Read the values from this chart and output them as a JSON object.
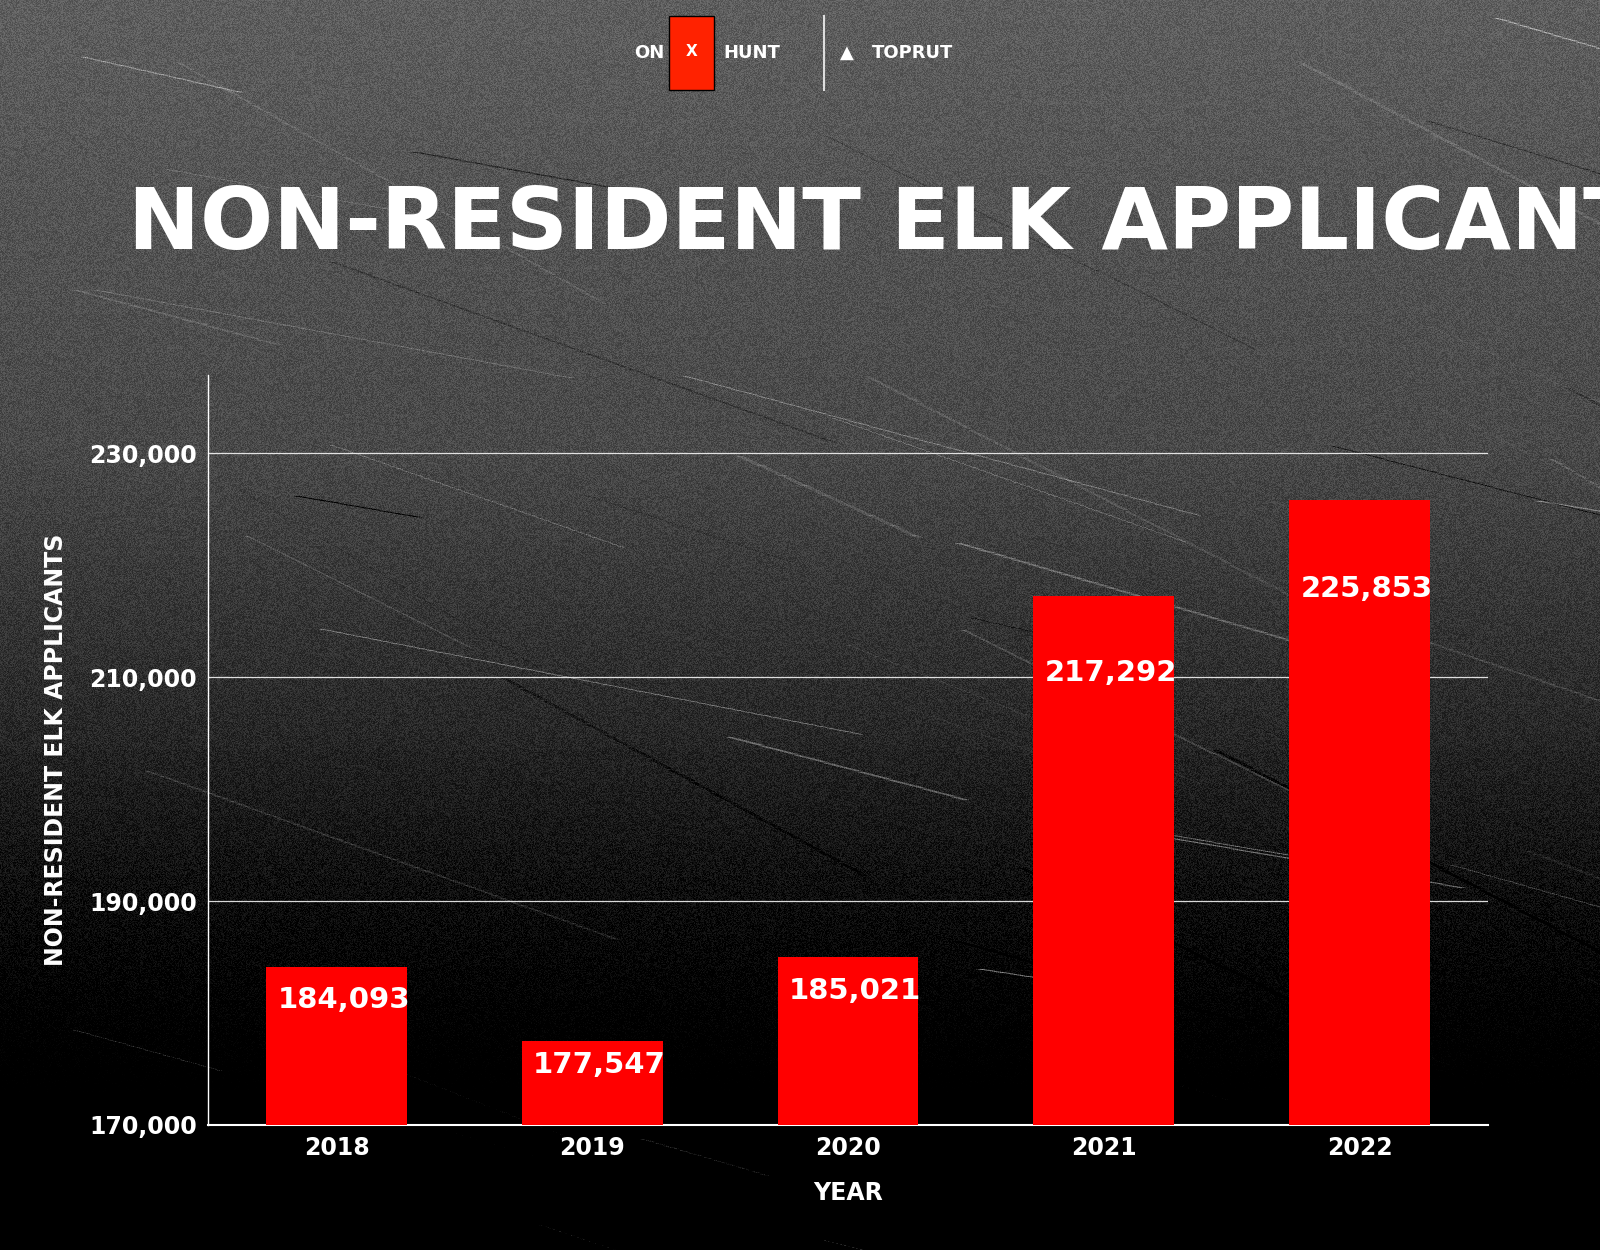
{
  "title": "NON-RESIDENT ELK APPLICANTS BY YEAR",
  "xlabel": "YEAR",
  "ylabel": "NON-RESIDENT ELK APPLICANTS",
  "years": [
    2018,
    2019,
    2020,
    2021,
    2022
  ],
  "values": [
    184093,
    177547,
    185021,
    217292,
    225853
  ],
  "bar_color": "#ff0000",
  "text_color": "#ffffff",
  "background_color": "#404040",
  "grid_color": "#ffffff",
  "ylim_min": 170000,
  "ylim_max": 237000,
  "yticks": [
    170000,
    190000,
    210000,
    230000
  ],
  "title_fontsize": 62,
  "axis_label_fontsize": 17,
  "tick_fontsize": 17,
  "bar_label_fontsize": 21,
  "header_bg": "#505050"
}
